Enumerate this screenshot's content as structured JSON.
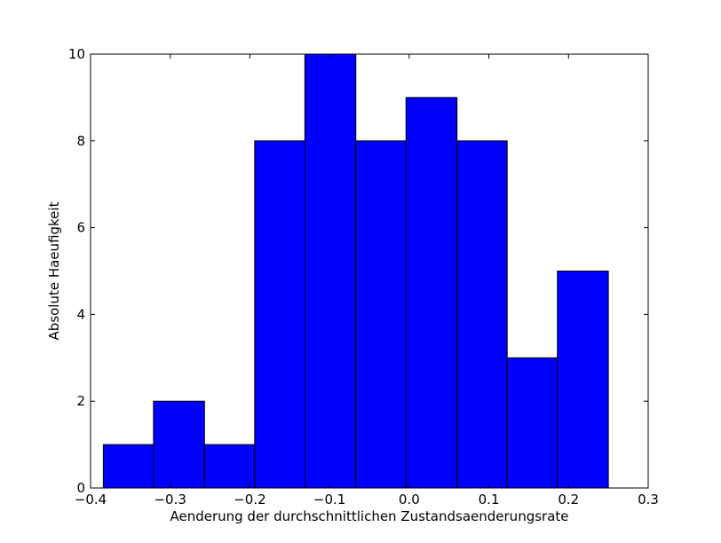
{
  "chart_data": {
    "type": "bar",
    "subtype": "histogram",
    "title": "",
    "xlabel": "Aenderung der durchschnittlichen Zustandsaenderungsrate",
    "ylabel": "Absolute Haeufigkeit",
    "xlim": [
      -0.4,
      0.3
    ],
    "ylim": [
      0,
      10
    ],
    "xticks": [
      -0.4,
      -0.3,
      -0.2,
      -0.1,
      0.0,
      0.1,
      0.2,
      0.3
    ],
    "xtick_labels": [
      "−0.4",
      "−0.3",
      "−0.2",
      "−0.1",
      "0.0",
      "0.1",
      "0.2",
      "0.3"
    ],
    "yticks": [
      0,
      2,
      4,
      6,
      8,
      10
    ],
    "ytick_labels": [
      "0",
      "2",
      "4",
      "6",
      "8",
      "10"
    ],
    "bin_edges": [
      -0.384,
      -0.321,
      -0.257,
      -0.194,
      -0.131,
      -0.067,
      -0.004,
      0.06,
      0.123,
      0.186,
      0.25
    ],
    "values": [
      1,
      2,
      1,
      8,
      10,
      8,
      9,
      8,
      3,
      5
    ],
    "bar_color": "#0000ff",
    "edge_color": "#000000",
    "grid": false
  }
}
